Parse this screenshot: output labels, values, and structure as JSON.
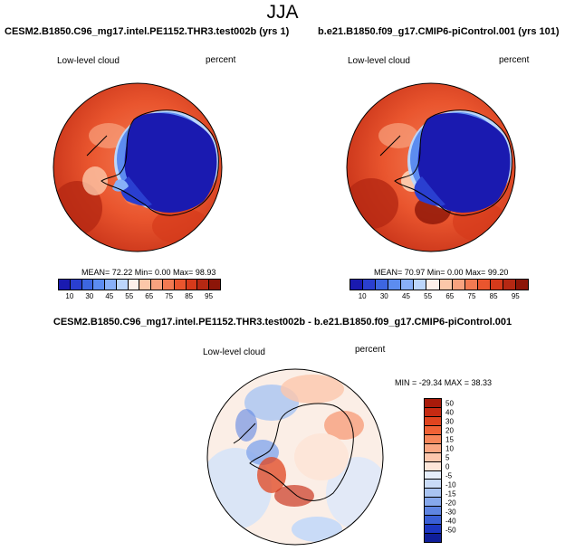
{
  "page": {
    "title": "JJA"
  },
  "panels": [
    {
      "case": "CESM2.B1850.C96_mg17.intel.PE1152.THR3.test002b (yrs 1)",
      "left_label": "Low-level cloud",
      "right_label": "percent",
      "stats": "MEAN=  72.22  Min=   0.00  Max=  98.93",
      "colorbar": {
        "labels": [
          "10",
          "30",
          "45",
          "55",
          "65",
          "75",
          "85",
          "95"
        ],
        "colors": [
          "#1a1ab0",
          "#2a3fd0",
          "#3d66e0",
          "#5c8cf0",
          "#88b0f8",
          "#bcd6fb",
          "#fdf0ea",
          "#fcc7a9",
          "#f8a27f",
          "#f27a52",
          "#e9552e",
          "#d53a1b",
          "#b52813",
          "#8c1508"
        ]
      }
    },
    {
      "case": "b.e21.B1850.f09_g17.CMIP6-piControl.001 (yrs 101)",
      "left_label": "Low-level cloud",
      "right_label": "percent",
      "stats": "MEAN=  70.97  Min=   0.00  Max=  99.20",
      "colorbar": {
        "labels": [
          "10",
          "30",
          "45",
          "55",
          "65",
          "75",
          "85",
          "95"
        ],
        "colors": [
          "#1a1ab0",
          "#2a3fd0",
          "#3d66e0",
          "#5c8cf0",
          "#88b0f8",
          "#bcd6fb",
          "#fdf0ea",
          "#fcc7a9",
          "#f8a27f",
          "#f27a52",
          "#e9552e",
          "#d53a1b",
          "#b52813",
          "#8c1508"
        ]
      }
    }
  ],
  "diff": {
    "title": "CESM2.B1850.C96_mg17.intel.PE1152.THR3.test002b - b.e21.B1850.f09_g17.CMIP6-piControl.001",
    "left_label": "Low-level cloud",
    "right_label": "percent",
    "minmax": "MIN = -29.34  MAX =  38.33",
    "colorbar": {
      "labels": [
        "50",
        "40",
        "30",
        "20",
        "15",
        "10",
        "5",
        "0",
        "-5",
        "-10",
        "-15",
        "-20",
        "-30",
        "-40",
        "-50"
      ],
      "colors": [
        "#a81a0a",
        "#c62a12",
        "#e0441f",
        "#f06236",
        "#f7865a",
        "#fba783",
        "#fdc7ad",
        "#fde6d9",
        "#e6eefb",
        "#c9dbf7",
        "#a9c4f2",
        "#86a8ec",
        "#5f85e2",
        "#3a5fd6",
        "#1c36c2",
        "#0f1e9a"
      ]
    }
  }
}
